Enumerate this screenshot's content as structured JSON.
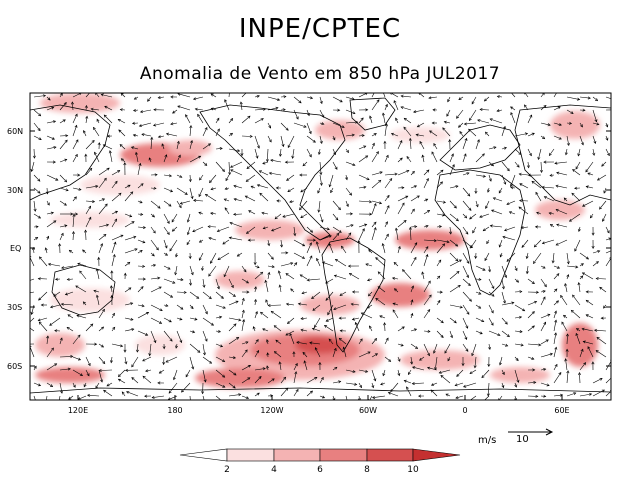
{
  "header": {
    "title": "INPE/CPTEC",
    "subtitle": "Anomalia de Vento em 850 hPa JUL2017"
  },
  "map": {
    "lat_labels": [
      "60N",
      "30N",
      "EQ",
      "30S",
      "60S"
    ],
    "lon_labels": [
      "120E",
      "180",
      "120W",
      "60W",
      "0",
      "60E"
    ],
    "fill_colors": [
      "#ffffff",
      "#fbe0e0",
      "#f4b3b3",
      "#e88080",
      "#d55050",
      "#c43030"
    ]
  },
  "colorbar": {
    "labels": [
      "2",
      "4",
      "6",
      "8",
      "10"
    ]
  },
  "reference_vector": {
    "units": "m/s",
    "value": "10"
  }
}
